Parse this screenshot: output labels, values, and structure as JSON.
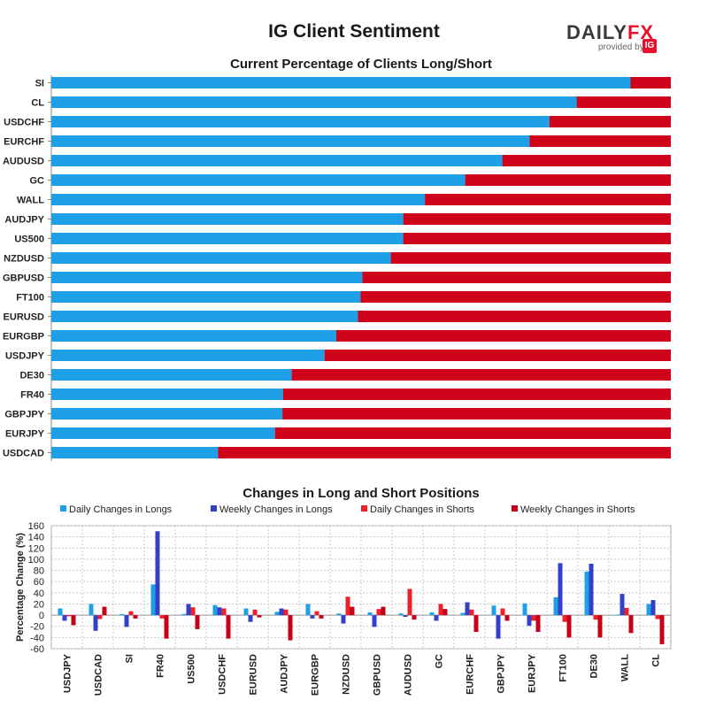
{
  "header": {
    "title": "IG Client Sentiment",
    "logo_name_1": "DAILY",
    "logo_name_2": "FX",
    "logo_provided": "provided by",
    "logo_ig": "IG"
  },
  "colors": {
    "long": "#1e9fe6",
    "short": "#d0021b",
    "daily_long": "#1e9fe6",
    "weekly_long": "#3340c8",
    "daily_short": "#f0202a",
    "weekly_short": "#c4001a",
    "grid": "#c8c8c8"
  },
  "chart_data": [
    {
      "type": "bar",
      "orientation": "horizontal",
      "stacked": true,
      "title": "Current Percentage of Clients Long/Short",
      "categories": [
        "SI",
        "CL",
        "USDCHF",
        "EURCHF",
        "AUDUSD",
        "GC",
        "WALL",
        "AUDJPY",
        "US500",
        "NZDUSD",
        "GBPUSD",
        "FT100",
        "EURUSD",
        "EURGBP",
        "USDJPY",
        "DE30",
        "FR40",
        "GBPJPY",
        "EURJPY",
        "USDCAD"
      ],
      "series": [
        {
          "values": [
            93.5,
            84.8,
            80.4,
            77.2,
            72.8,
            66.8,
            60.3,
            56.8,
            56.8,
            54.8,
            50.2,
            49.9,
            49.5,
            46.0,
            44.1,
            38.8,
            37.4,
            37.3,
            36.1,
            26.9
          ]
        },
        {
          "values": [
            6.5,
            15.2,
            19.6,
            22.8,
            27.2,
            33.2,
            39.7,
            43.2,
            43.2,
            45.2,
            49.8,
            50.1,
            50.5,
            54.0,
            55.9,
            61.2,
            62.6,
            62.7,
            63.9,
            73.1
          ]
        }
      ],
      "xlim": [
        0,
        100
      ]
    },
    {
      "type": "bar",
      "title": "Changes in Long and Short Positions",
      "ylabel": "Percentage Change (%)",
      "ylim": [
        -60,
        160
      ],
      "yticks": [
        -60,
        -40,
        -20,
        0,
        20,
        40,
        60,
        80,
        100,
        120,
        140,
        160
      ],
      "legend_position": "top",
      "categories": [
        "USDJPY",
        "USDCAD",
        "SI",
        "FR40",
        "US500",
        "USDCHF",
        "EURUSD",
        "AUDJPY",
        "EURGBP",
        "NZDUSD",
        "GBPUSD",
        "AUDUSD",
        "GC",
        "EURCHF",
        "GBPJPY",
        "EURJPY",
        "FT100",
        "DE30",
        "WALL",
        "CL"
      ],
      "series": [
        {
          "name": "Daily Changes in Longs",
          "values": [
            12,
            20,
            2,
            55,
            2,
            18,
            12,
            6,
            20,
            3,
            5,
            3,
            5,
            4,
            17,
            21,
            32,
            78,
            1,
            20
          ]
        },
        {
          "name": "Weekly Changes in Longs",
          "values": [
            -10,
            -28,
            -21,
            150,
            20,
            14,
            -12,
            12,
            -6,
            -15,
            -21,
            -3,
            -10,
            23,
            -42,
            -19,
            93,
            92,
            38,
            27
          ]
        },
        {
          "name": "Daily Changes in Shorts",
          "values": [
            -2,
            -7,
            7,
            -6,
            14,
            12,
            10,
            10,
            7,
            33,
            11,
            47,
            20,
            10,
            12,
            -10,
            -12,
            -8,
            13,
            -7
          ]
        },
        {
          "name": "Weekly Changes in Shorts",
          "values": [
            -18,
            15,
            -6,
            -42,
            -25,
            -42,
            -4,
            -45,
            -6,
            15,
            15,
            -8,
            11,
            -30,
            -10,
            -30,
            -40,
            -40,
            -32,
            -52
          ]
        }
      ]
    }
  ]
}
